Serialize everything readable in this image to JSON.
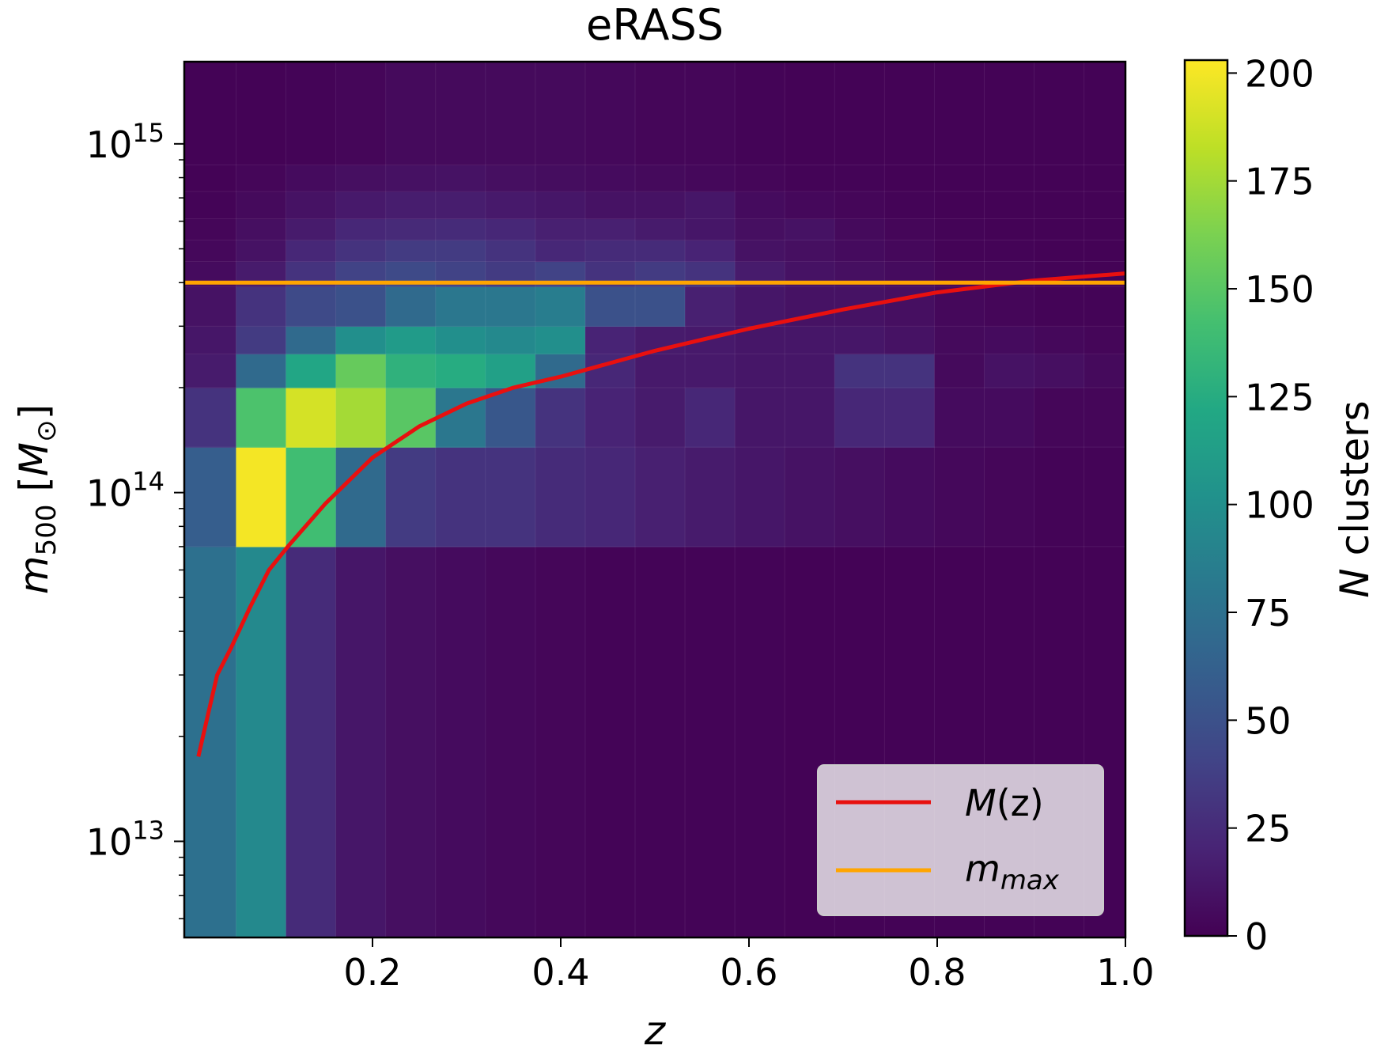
{
  "chart_data": {
    "type": "heatmap",
    "title": "eRASS",
    "xlabel": "z",
    "ylabel": "m",
    "ylabel_sub": "500",
    "ylabel_unit_open": "[",
    "ylabel_unit": "M",
    "ylabel_unit_sub": "⊙",
    "ylabel_unit_close": "]",
    "xlim": [
      0.0,
      1.0
    ],
    "ylim": [
      5300000000000.0,
      1720000000000000.0
    ],
    "yscale": "log",
    "xticks": [
      "0.2",
      "0.4",
      "0.6",
      "0.8",
      "1.0"
    ],
    "xtick_values": [
      0.2,
      0.4,
      0.6,
      0.8,
      1.0
    ],
    "yticks": [
      {
        "base": "10",
        "exp": "13",
        "value": 10000000000000.0
      },
      {
        "base": "10",
        "exp": "14",
        "value": 100000000000000.0
      },
      {
        "base": "10",
        "exp": "15",
        "value": 1000000000000000.0
      }
    ],
    "colorbar": {
      "label": "N clusters",
      "label_italic": "N",
      "label_rest": " clusters",
      "min": 0,
      "max": 203,
      "ticks": [
        "0",
        "25",
        "50",
        "75",
        "100",
        "125",
        "150",
        "175",
        "200"
      ],
      "tick_values": [
        0,
        25,
        50,
        75,
        100,
        125,
        150,
        175,
        200
      ]
    },
    "z_edges": [
      0.0,
      0.055,
      0.108,
      0.161,
      0.214,
      0.267,
      0.32,
      0.373,
      0.426,
      0.479,
      0.532,
      0.585,
      0.638,
      0.691,
      0.744,
      0.797,
      0.85,
      0.903,
      0.956,
      1.0
    ],
    "m_edges": [
      5300000000000.0,
      70000000000000.0,
      135000000000000.0,
      200000000000000.0,
      250000000000000.0,
      300000000000000.0,
      390000000000000.0,
      460000000000000.0,
      530000000000000.0,
      610000000000000.0,
      730000000000000.0,
      870000000000000.0,
      1720000000000000.0
    ],
    "counts": [
      [
        75,
        95,
        25,
        12,
        8,
        6,
        4,
        3,
        2,
        2,
        2,
        2,
        1,
        1,
        1,
        1,
        1,
        1,
        1
      ],
      [
        60,
        200,
        140,
        70,
        35,
        30,
        30,
        25,
        22,
        18,
        15,
        12,
        10,
        8,
        6,
        4,
        3,
        2,
        2
      ],
      [
        30,
        145,
        190,
        175,
        150,
        80,
        55,
        30,
        20,
        15,
        22,
        12,
        12,
        22,
        22,
        6,
        6,
        3,
        3
      ],
      [
        15,
        70,
        120,
        155,
        130,
        125,
        115,
        70,
        22,
        14,
        14,
        12,
        12,
        30,
        30,
        5,
        10,
        8,
        5
      ],
      [
        12,
        35,
        70,
        100,
        110,
        100,
        95,
        100,
        20,
        15,
        14,
        12,
        12,
        12,
        10,
        5,
        6,
        4,
        3
      ],
      [
        10,
        30,
        45,
        50,
        70,
        80,
        80,
        85,
        50,
        50,
        18,
        12,
        10,
        10,
        8,
        4,
        3,
        2,
        2
      ],
      [
        6,
        15,
        30,
        40,
        45,
        40,
        35,
        40,
        30,
        35,
        30,
        15,
        10,
        8,
        6,
        3,
        3,
        2,
        1
      ],
      [
        4,
        10,
        22,
        30,
        35,
        35,
        30,
        22,
        25,
        25,
        20,
        10,
        8,
        6,
        4,
        2,
        2,
        1,
        1
      ],
      [
        3,
        8,
        15,
        22,
        24,
        25,
        22,
        18,
        18,
        15,
        12,
        8,
        10,
        5,
        3,
        2,
        1,
        1,
        1
      ],
      [
        2,
        5,
        10,
        14,
        16,
        16,
        14,
        12,
        10,
        10,
        12,
        6,
        4,
        3,
        2,
        1,
        1,
        1,
        1
      ],
      [
        1,
        3,
        6,
        8,
        9,
        10,
        8,
        7,
        6,
        5,
        4,
        3,
        2,
        2,
        1,
        1,
        1,
        1,
        1
      ],
      [
        1,
        1,
        2,
        3,
        5,
        5,
        5,
        5,
        4,
        3,
        3,
        2,
        1,
        1,
        1,
        1,
        1,
        1,
        1
      ]
    ],
    "series": [
      {
        "name": "M(z)",
        "label_main": "M",
        "label_rest": "(z)",
        "color": "#e8100f",
        "x": [
          0.015,
          0.025,
          0.035,
          0.05,
          0.07,
          0.09,
          0.11,
          0.15,
          0.2,
          0.25,
          0.3,
          0.35,
          0.4,
          0.5,
          0.6,
          0.7,
          0.8,
          0.9,
          1.0
        ],
        "y": [
          17500000000000.0,
          23000000000000.0,
          30000000000000.0,
          36000000000000.0,
          47000000000000.0,
          60000000000000.0,
          70000000000000.0,
          93000000000000.0,
          126000000000000.0,
          155000000000000.0,
          180000000000000.0,
          200000000000000.0,
          215000000000000.0,
          255000000000000.0,
          295000000000000.0,
          335000000000000.0,
          375000000000000.0,
          405000000000000.0,
          425000000000000.0
        ]
      },
      {
        "name": "m_max",
        "label_main": "m",
        "label_sub": "max",
        "color": "#ffa500",
        "y": 400000000000000.0
      }
    ],
    "legend_placement": "lower-right"
  }
}
